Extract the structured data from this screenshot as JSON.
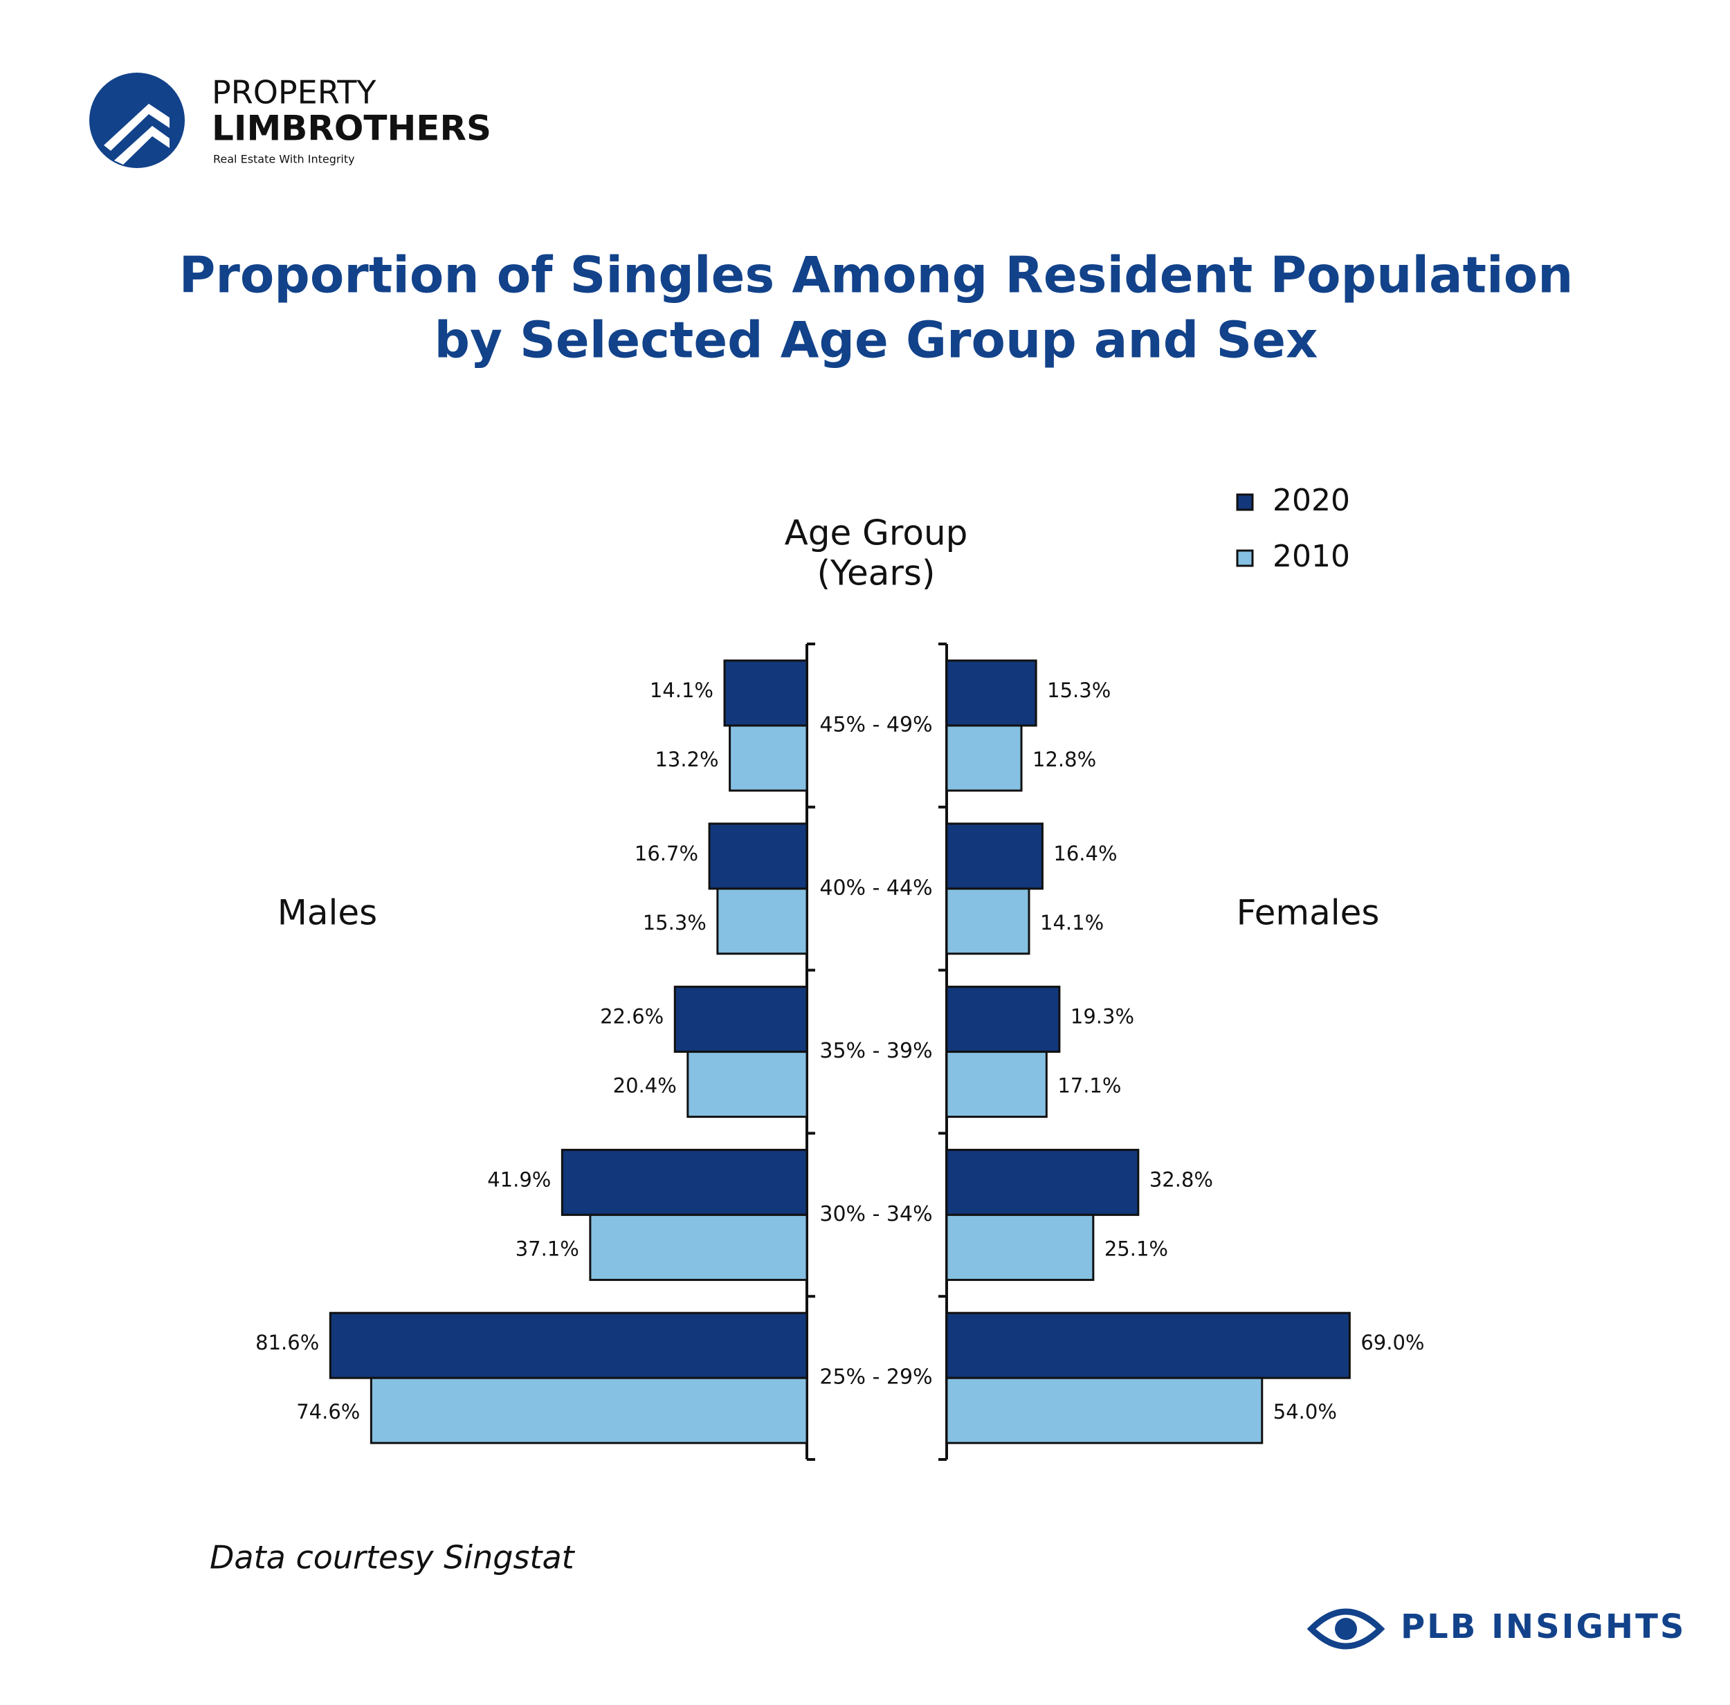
{
  "branding": {
    "name_top": "PROPERTY",
    "name_bottom": "LIMBROTHERS",
    "tagline": "Real Estate With Integrity"
  },
  "chart_data": {
    "type": "pyramid",
    "title": [
      "Proportion of Singles Among Resident Population",
      "by Selected Age Group and Sex"
    ],
    "axis_title": [
      "Age Group",
      "(Years)"
    ],
    "sides": [
      "Males",
      "Females"
    ],
    "categories": [
      "45% - 49%",
      "40% - 44%",
      "35% - 39%",
      "30% - 34%",
      "25% - 29%"
    ],
    "series": [
      {
        "name": "2020",
        "color": "#12377a",
        "males": [
          14.1,
          16.7,
          22.6,
          41.9,
          81.6
        ],
        "males_labels": [
          "14.1%",
          "16.7%",
          "22.6%",
          "41.9%",
          "81.6%"
        ],
        "females": [
          15.3,
          16.4,
          19.3,
          32.8,
          69.0
        ],
        "females_labels": [
          "15.3%",
          "16.4%",
          "19.3%",
          "32.8%",
          "69.0%"
        ]
      },
      {
        "name": "2010",
        "color": "#86c1e3",
        "males": [
          13.2,
          15.3,
          20.4,
          37.1,
          74.6
        ],
        "males_labels": [
          "13.2%",
          "15.3%",
          "20.4%",
          "37.1%",
          "74.6%"
        ],
        "females": [
          12.8,
          14.1,
          17.1,
          25.1,
          54.0
        ],
        "females_labels": [
          "12.8%",
          "14.1%",
          "17.1%",
          "25.1%",
          "54.0%"
        ]
      }
    ]
  },
  "source": "Data courtesy Singstat",
  "footer": "PLB INSIGHTS"
}
